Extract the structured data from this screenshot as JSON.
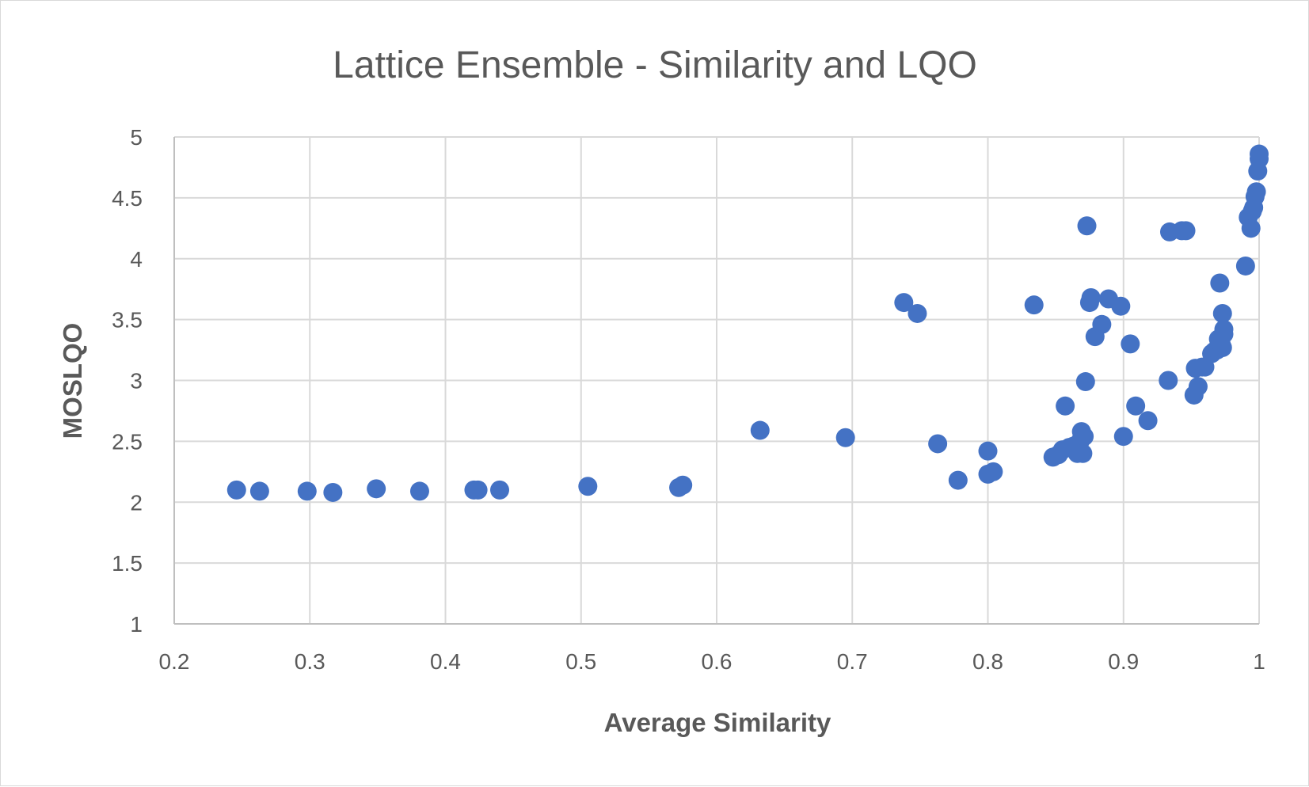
{
  "chart_data": {
    "type": "scatter",
    "title": "Lattice Ensemble - Similarity and LQO",
    "xlabel": "Average Similarity",
    "ylabel": "MOSLQO",
    "xlim": [
      0.2,
      1
    ],
    "ylim": [
      1,
      5
    ],
    "xticks": [
      "0.2",
      "0.3",
      "0.4",
      "0.5",
      "0.6",
      "0.7",
      "0.8",
      "0.9",
      "1"
    ],
    "yticks": [
      "1",
      "1.5",
      "2",
      "2.5",
      "3",
      "3.5",
      "4",
      "4.5",
      "5"
    ],
    "grid": true,
    "legend": "none",
    "color": "#4472c4",
    "series": [
      {
        "points": [
          [
            0.246,
            2.1
          ],
          [
            0.263,
            2.09
          ],
          [
            0.298,
            2.09
          ],
          [
            0.317,
            2.08
          ],
          [
            0.349,
            2.11
          ],
          [
            0.381,
            2.09
          ],
          [
            0.421,
            2.1
          ],
          [
            0.424,
            2.1
          ],
          [
            0.44,
            2.1
          ],
          [
            0.505,
            2.13
          ],
          [
            0.572,
            2.12
          ],
          [
            0.575,
            2.14
          ],
          [
            0.632,
            2.59
          ],
          [
            0.695,
            2.53
          ],
          [
            0.738,
            3.64
          ],
          [
            0.748,
            3.55
          ],
          [
            0.763,
            2.48
          ],
          [
            0.778,
            2.18
          ],
          [
            0.8,
            2.42
          ],
          [
            0.8,
            2.23
          ],
          [
            0.804,
            2.25
          ],
          [
            0.834,
            3.62
          ],
          [
            0.848,
            2.37
          ],
          [
            0.852,
            2.39
          ],
          [
            0.855,
            2.43
          ],
          [
            0.857,
            2.79
          ],
          [
            0.86,
            2.45
          ],
          [
            0.863,
            2.46
          ],
          [
            0.866,
            2.4
          ],
          [
            0.868,
            2.5
          ],
          [
            0.87,
            2.4
          ],
          [
            0.869,
            2.58
          ],
          [
            0.871,
            2.54
          ],
          [
            0.872,
            2.99
          ],
          [
            0.873,
            4.27
          ],
          [
            0.875,
            3.64
          ],
          [
            0.876,
            3.68
          ],
          [
            0.879,
            3.36
          ],
          [
            0.884,
            3.46
          ],
          [
            0.889,
            3.67
          ],
          [
            0.898,
            3.61
          ],
          [
            0.9,
            2.54
          ],
          [
            0.905,
            3.3
          ],
          [
            0.909,
            2.79
          ],
          [
            0.918,
            2.67
          ],
          [
            0.933,
            3.0
          ],
          [
            0.934,
            4.22
          ],
          [
            0.943,
            4.23
          ],
          [
            0.946,
            4.23
          ],
          [
            0.952,
            2.88
          ],
          [
            0.953,
            3.1
          ],
          [
            0.955,
            2.95
          ],
          [
            0.958,
            3.11
          ],
          [
            0.96,
            3.11
          ],
          [
            0.965,
            3.22
          ],
          [
            0.967,
            3.24
          ],
          [
            0.969,
            3.25
          ],
          [
            0.97,
            3.34
          ],
          [
            0.971,
            3.8
          ],
          [
            0.972,
            3.3
          ],
          [
            0.973,
            3.27
          ],
          [
            0.973,
            3.55
          ],
          [
            0.974,
            3.42
          ],
          [
            0.974,
            3.38
          ],
          [
            0.99,
            3.94
          ],
          [
            0.992,
            4.34
          ],
          [
            0.994,
            4.25
          ],
          [
            0.995,
            4.39
          ],
          [
            0.996,
            4.42
          ],
          [
            0.997,
            4.51
          ],
          [
            0.998,
            4.55
          ],
          [
            0.999,
            4.72
          ],
          [
            1.0,
            4.82
          ],
          [
            1.0,
            4.86
          ]
        ]
      }
    ]
  }
}
